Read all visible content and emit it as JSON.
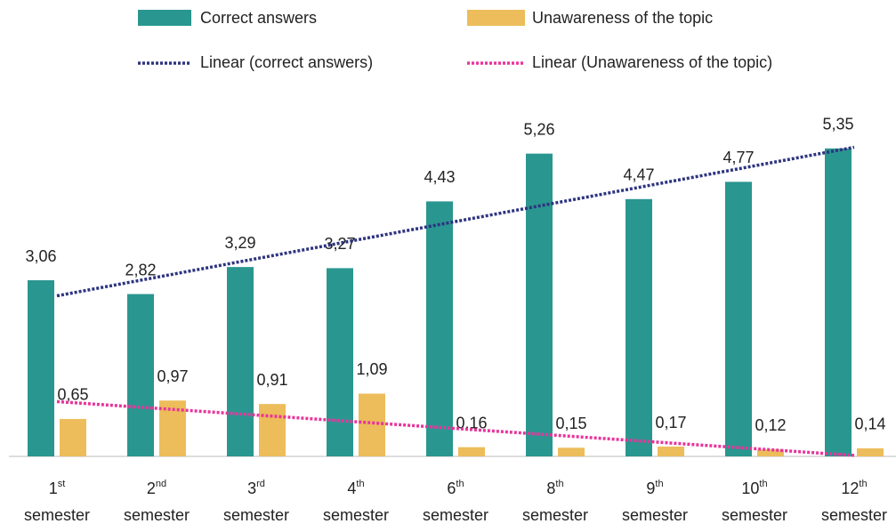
{
  "chart_data": {
    "type": "bar",
    "categories": [
      "1st semester",
      "2nd semester",
      "3rd semester",
      "4th semester",
      "6th semester",
      "8th semester",
      "9th semester",
      "10th semester",
      "12th semester"
    ],
    "series": [
      {
        "name": "Correct answers",
        "color": "#2a9690",
        "values": [
          3.06,
          2.82,
          3.29,
          3.27,
          4.43,
          5.26,
          4.47,
          4.77,
          5.35
        ],
        "value_labels": [
          "3,06",
          "2,82",
          "3,29",
          "3,27",
          "4,43",
          "5,26",
          "4,47",
          "4,77",
          "5,35"
        ]
      },
      {
        "name": "Unawareness of the topic",
        "color": "#ecbd5a",
        "values": [
          0.65,
          0.97,
          0.91,
          1.09,
          0.16,
          0.15,
          0.17,
          0.12,
          0.14
        ],
        "value_labels": [
          "0,65",
          "0,97",
          "0,91",
          "1,09",
          "0,16",
          "0,15",
          "0,17",
          "0,12",
          "0,14"
        ]
      }
    ],
    "trendlines": [
      {
        "name": "Linear (correct answers)",
        "color": "#2e3480",
        "series": 0
      },
      {
        "name": "Linear (Unawareness of the topic)",
        "color": "#e8359a",
        "series": 1
      }
    ]
  }
}
